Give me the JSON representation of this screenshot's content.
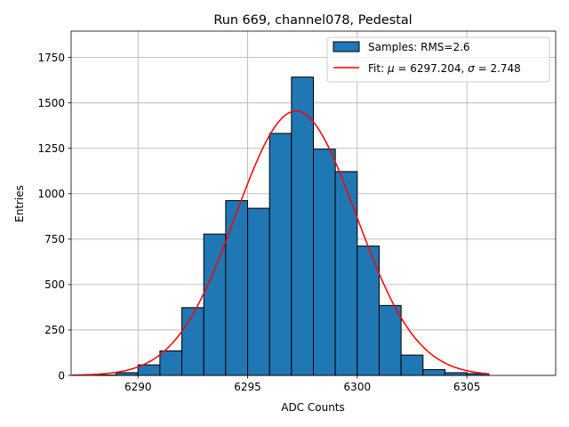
{
  "chart_data": {
    "type": "bar",
    "title": "Run 669, channel078, Pedestal",
    "xlabel": "ADC Counts",
    "ylabel": "Entries",
    "xlim": [
      6286.95,
      6309.05
    ],
    "ylim": [
      0,
      1895
    ],
    "xticks": [
      6290,
      6295,
      6300,
      6305
    ],
    "yticks": [
      0,
      250,
      500,
      750,
      1000,
      1250,
      1500,
      1750
    ],
    "grid": true,
    "legend_position": "top-right",
    "histogram": {
      "name": "Samples: RMS=2.6",
      "color": "#1f77b4",
      "edge_color": "#000000",
      "bin_width": 1,
      "bin_starts": [
        6288,
        6289,
        6290,
        6291,
        6292,
        6293,
        6294,
        6295,
        6296,
        6297,
        6298,
        6299,
        6300,
        6301,
        6302,
        6303,
        6304,
        6305
      ],
      "counts": [
        2,
        15,
        58,
        135,
        373,
        778,
        962,
        920,
        1332,
        1642,
        1245,
        1122,
        712,
        385,
        112,
        32,
        15,
        10
      ]
    },
    "fit": {
      "name_prefix": "Fit: ",
      "mu_symbol": "μ",
      "mu_text": " = 6297.204, ",
      "sigma_symbol": "σ",
      "sigma_text": " = 2.748",
      "color": "#ff0000",
      "mu": 6297.204,
      "sigma": 2.748,
      "amplitude": 1455,
      "x_range": [
        6287,
        6306
      ]
    }
  }
}
